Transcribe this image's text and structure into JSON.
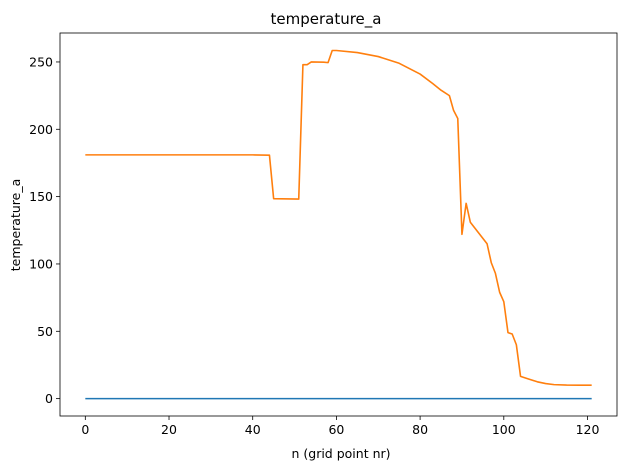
{
  "chart_data": {
    "type": "line",
    "title": "temperature_a",
    "xlabel": "n (grid point nr)",
    "ylabel": "temperature_a",
    "xlim": [
      -6.05,
      127.05
    ],
    "ylim": [
      -12.9,
      271.5
    ],
    "xticks": [
      0,
      20,
      40,
      60,
      80,
      100,
      120
    ],
    "yticks": [
      0,
      50,
      100,
      150,
      200,
      250
    ],
    "grid": false,
    "legend": "none",
    "series": [
      {
        "color": "#1f77b4",
        "x": [
          0,
          121
        ],
        "y": [
          0,
          0
        ]
      },
      {
        "color": "#ff7f0e",
        "x": [
          0,
          10,
          20,
          30,
          40,
          44,
          45,
          51,
          52,
          53,
          54,
          57,
          58,
          59,
          60,
          65,
          70,
          75,
          80,
          83,
          85,
          87,
          88,
          89,
          90,
          91,
          92,
          94,
          96,
          97,
          98,
          99,
          100,
          101,
          102,
          103,
          104,
          106,
          108,
          110,
          112,
          115,
          118,
          121
        ],
        "y": [
          181,
          181,
          181,
          181,
          181,
          180.8,
          148.5,
          148.2,
          248,
          248,
          250,
          249.8,
          249.5,
          258.5,
          258.5,
          257,
          254,
          249,
          241,
          234,
          229,
          225,
          214,
          208,
          122,
          145,
          131,
          123,
          115,
          101,
          93,
          79,
          72,
          49,
          48,
          40,
          16.5,
          14.5,
          12.5,
          11.2,
          10.4,
          10.1,
          10.0,
          10.0
        ]
      }
    ]
  }
}
